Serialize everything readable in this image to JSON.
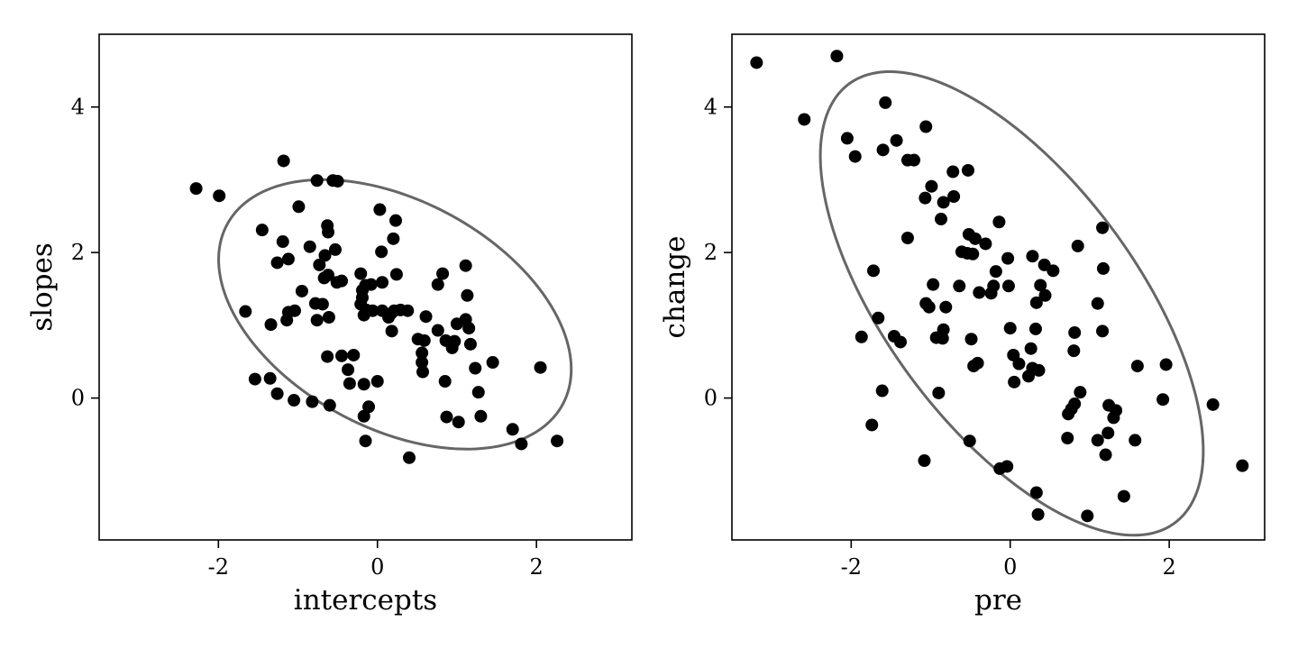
{
  "chart_data": [
    {
      "type": "scatter",
      "xlabel": "intercepts",
      "ylabel": "slopes",
      "xlim": [
        -3.5,
        3.2
      ],
      "ylim": [
        -1.95,
        5.0
      ],
      "xticks": [
        -2,
        0,
        2
      ],
      "xtick_labels": [
        "-2",
        "0",
        "2"
      ],
      "yticks": [
        0,
        2,
        4
      ],
      "ytick_labels": [
        "0",
        "2",
        "4"
      ],
      "grid": false,
      "ellipse": {
        "center": [
          0.22,
          1.15
        ],
        "semi_major": 2.45,
        "semi_minor": 1.53,
        "angle_deg": -33,
        "color": "#666666"
      },
      "point_color": "#000000",
      "points": [
        [
          -2.28,
          2.88
        ],
        [
          -1.99,
          2.78
        ],
        [
          -1.18,
          3.26
        ],
        [
          -0.76,
          2.99
        ],
        [
          -0.56,
          2.99
        ],
        [
          -0.5,
          2.98
        ],
        [
          -0.99,
          2.63
        ],
        [
          -1.45,
          2.31
        ],
        [
          -1.19,
          2.15
        ],
        [
          -0.85,
          2.08
        ],
        [
          -0.63,
          2.37
        ],
        [
          -0.62,
          2.28
        ],
        [
          -0.53,
          2.04
        ],
        [
          -0.66,
          1.96
        ],
        [
          -1.12,
          1.91
        ],
        [
          -1.26,
          1.86
        ],
        [
          -0.73,
          1.83
        ],
        [
          -0.62,
          1.69
        ],
        [
          -0.67,
          1.65
        ],
        [
          -0.21,
          1.71
        ],
        [
          -0.45,
          1.61
        ],
        [
          -0.51,
          1.59
        ],
        [
          -0.15,
          1.55
        ],
        [
          -0.08,
          1.56
        ],
        [
          -0.19,
          1.48
        ],
        [
          -0.95,
          1.47
        ],
        [
          -0.19,
          1.38
        ],
        [
          -0.21,
          1.29
        ],
        [
          -0.78,
          1.3
        ],
        [
          -0.69,
          1.29
        ],
        [
          -1.04,
          1.2
        ],
        [
          -1.66,
          1.19
        ],
        [
          -1.12,
          1.18
        ],
        [
          -0.14,
          1.21
        ],
        [
          -0.06,
          1.2
        ],
        [
          -0.17,
          1.14
        ],
        [
          -0.61,
          1.11
        ],
        [
          -1.14,
          1.07
        ],
        [
          -0.76,
          1.07
        ],
        [
          -1.34,
          1.01
        ],
        [
          0.03,
          2.59
        ],
        [
          0.23,
          2.44
        ],
        [
          0.2,
          2.19
        ],
        [
          0.05,
          2.01
        ],
        [
          0.24,
          1.7
        ],
        [
          0.06,
          1.59
        ],
        [
          0.06,
          1.2
        ],
        [
          0.17,
          1.16
        ],
        [
          0.21,
          1.2
        ],
        [
          0.29,
          1.21
        ],
        [
          0.38,
          1.2
        ],
        [
          0.14,
          1.11
        ],
        [
          0.18,
          0.92
        ],
        [
          0.76,
          1.56
        ],
        [
          0.82,
          1.71
        ],
        [
          1.11,
          1.82
        ],
        [
          1.13,
          1.41
        ],
        [
          0.61,
          1.12
        ],
        [
          1.0,
          1.02
        ],
        [
          1.11,
          1.08
        ],
        [
          1.15,
          0.96
        ],
        [
          0.76,
          0.93
        ],
        [
          0.51,
          0.81
        ],
        [
          0.59,
          0.79
        ],
        [
          0.86,
          0.79
        ],
        [
          0.97,
          0.78
        ],
        [
          1.17,
          0.74
        ],
        [
          0.94,
          0.69
        ],
        [
          0.56,
          0.62
        ],
        [
          0.56,
          0.49
        ],
        [
          0.57,
          0.36
        ],
        [
          1.23,
          0.41
        ],
        [
          1.45,
          0.49
        ],
        [
          2.05,
          0.42
        ],
        [
          0.85,
          0.23
        ],
        [
          1.27,
          0.08
        ],
        [
          -0.63,
          0.57
        ],
        [
          -0.45,
          0.58
        ],
        [
          -0.3,
          0.59
        ],
        [
          -0.37,
          0.39
        ],
        [
          -0.35,
          0.2
        ],
        [
          -0.17,
          0.19
        ],
        [
          0.0,
          0.23
        ],
        [
          -1.54,
          0.26
        ],
        [
          -1.35,
          0.27
        ],
        [
          -1.26,
          0.06
        ],
        [
          -1.05,
          -0.03
        ],
        [
          -0.82,
          -0.05
        ],
        [
          -0.6,
          -0.1
        ],
        [
          -0.11,
          -0.12
        ],
        [
          -0.17,
          -0.25
        ],
        [
          0.87,
          -0.26
        ],
        [
          1.02,
          -0.33
        ],
        [
          1.3,
          -0.25
        ],
        [
          1.7,
          -0.43
        ],
        [
          1.81,
          -0.63
        ],
        [
          2.26,
          -0.59
        ],
        [
          -0.15,
          -0.59
        ],
        [
          0.4,
          -0.82
        ]
      ]
    },
    {
      "type": "scatter",
      "xlabel": "pre",
      "ylabel": "change",
      "xlim": [
        -3.5,
        3.2
      ],
      "ylim": [
        -1.95,
        5.0
      ],
      "xticks": [
        -2,
        0,
        2
      ],
      "xtick_labels": [
        "-2",
        "0",
        "2"
      ],
      "yticks": [
        0,
        2,
        4
      ],
      "ytick_labels": [
        "0",
        "2",
        "4"
      ],
      "grid": false,
      "ellipse": {
        "center": [
          0.02,
          1.3
        ],
        "semi_major": 3.65,
        "semi_minor": 1.62,
        "angle_deg": -57,
        "color": "#666666"
      },
      "point_color": "#000000",
      "points": [
        [
          -3.19,
          4.61
        ],
        [
          -2.18,
          4.7
        ],
        [
          -2.59,
          3.83
        ],
        [
          -2.05,
          3.57
        ],
        [
          -1.95,
          3.32
        ],
        [
          -1.57,
          4.06
        ],
        [
          -1.6,
          3.41
        ],
        [
          -1.43,
          3.54
        ],
        [
          -1.29,
          3.27
        ],
        [
          -1.21,
          3.27
        ],
        [
          -1.06,
          3.73
        ],
        [
          -0.72,
          3.11
        ],
        [
          -0.53,
          3.13
        ],
        [
          -1.07,
          2.75
        ],
        [
          -0.99,
          2.91
        ],
        [
          -0.84,
          2.69
        ],
        [
          -0.71,
          2.77
        ],
        [
          -0.87,
          2.46
        ],
        [
          -1.29,
          2.2
        ],
        [
          -0.52,
          2.25
        ],
        [
          -0.44,
          2.19
        ],
        [
          -0.31,
          2.12
        ],
        [
          -0.61,
          2.01
        ],
        [
          -0.54,
          1.99
        ],
        [
          -0.47,
          1.98
        ],
        [
          -0.14,
          2.42
        ],
        [
          -0.03,
          1.92
        ],
        [
          -0.18,
          1.74
        ],
        [
          0.28,
          1.95
        ],
        [
          0.43,
          1.83
        ],
        [
          0.54,
          1.75
        ],
        [
          0.85,
          2.09
        ],
        [
          1.16,
          2.34
        ],
        [
          1.17,
          1.78
        ],
        [
          -1.72,
          1.75
        ],
        [
          -0.97,
          1.56
        ],
        [
          -0.64,
          1.54
        ],
        [
          -0.21,
          1.54
        ],
        [
          -0.39,
          1.45
        ],
        [
          -0.24,
          1.44
        ],
        [
          -0.02,
          1.54
        ],
        [
          0.38,
          1.55
        ],
        [
          0.44,
          1.41
        ],
        [
          0.33,
          1.31
        ],
        [
          1.1,
          1.3
        ],
        [
          -1.06,
          1.3
        ],
        [
          -1.02,
          1.25
        ],
        [
          -0.81,
          1.25
        ],
        [
          -1.66,
          1.1
        ],
        [
          -0.84,
          0.94
        ],
        [
          -0.93,
          0.83
        ],
        [
          -0.85,
          0.82
        ],
        [
          -1.87,
          0.84
        ],
        [
          -1.46,
          0.85
        ],
        [
          -1.38,
          0.77
        ],
        [
          -0.49,
          0.81
        ],
        [
          0.0,
          0.96
        ],
        [
          0.32,
          0.95
        ],
        [
          0.81,
          0.9
        ],
        [
          1.16,
          0.92
        ],
        [
          0.26,
          0.68
        ],
        [
          0.8,
          0.65
        ],
        [
          0.04,
          0.59
        ],
        [
          0.11,
          0.47
        ],
        [
          0.28,
          0.41
        ],
        [
          0.36,
          0.38
        ],
        [
          -0.41,
          0.48
        ],
        [
          -0.46,
          0.44
        ],
        [
          0.05,
          0.22
        ],
        [
          0.23,
          0.3
        ],
        [
          1.6,
          0.44
        ],
        [
          1.96,
          0.46
        ],
        [
          -1.61,
          0.1
        ],
        [
          -0.9,
          0.07
        ],
        [
          0.88,
          0.08
        ],
        [
          0.81,
          -0.08
        ],
        [
          0.77,
          -0.15
        ],
        [
          0.73,
          -0.22
        ],
        [
          1.24,
          -0.1
        ],
        [
          1.33,
          -0.17
        ],
        [
          1.3,
          -0.27
        ],
        [
          1.92,
          -0.02
        ],
        [
          2.55,
          -0.09
        ],
        [
          -1.74,
          -0.37
        ],
        [
          -0.51,
          -0.59
        ],
        [
          0.72,
          -0.55
        ],
        [
          1.1,
          -0.58
        ],
        [
          1.23,
          -0.48
        ],
        [
          1.57,
          -0.58
        ],
        [
          1.2,
          -0.78
        ],
        [
          2.92,
          -0.93
        ],
        [
          -1.08,
          -0.86
        ],
        [
          -0.13,
          -0.97
        ],
        [
          -0.04,
          -0.94
        ],
        [
          0.33,
          -1.3
        ],
        [
          0.35,
          -1.6
        ],
        [
          0.97,
          -1.62
        ],
        [
          1.43,
          -1.35
        ]
      ]
    }
  ]
}
